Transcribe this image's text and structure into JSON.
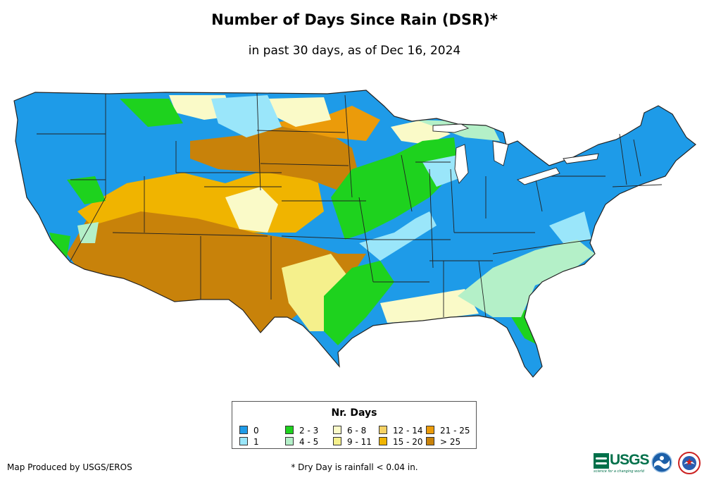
{
  "title": "Number of Days Since Rain (DSR)*",
  "subtitle": "in past 30 days, as of Dec 16, 2024",
  "legend": {
    "title": "Nr. Days",
    "items": [
      {
        "label": "0",
        "color": "#1e9be8"
      },
      {
        "label": "1",
        "color": "#9ae6fa"
      },
      {
        "label": "2 - 3",
        "color": "#1ed21e"
      },
      {
        "label": "4 - 5",
        "color": "#b4f0c8"
      },
      {
        "label": "6 - 8",
        "color": "#fafac8"
      },
      {
        "label": "9 - 11",
        "color": "#f5f08c"
      },
      {
        "label": "12 - 14",
        "color": "#f5d264"
      },
      {
        "label": "15 - 20",
        "color": "#f0b400"
      },
      {
        "label": "21 - 25",
        "color": "#eb9b0a"
      },
      {
        "label": "> 25",
        "color": "#c8820a"
      }
    ]
  },
  "credit": "Map Produced by USGS/EROS",
  "footnote": "* Dry Day is rainfall < 0.04 in.",
  "logos": {
    "usgs_text": "USGS",
    "usgs_tagline": "science for a changing world"
  },
  "colors": {
    "outline": "#222222",
    "usgs_green": "#00704a",
    "noaa_blue": "#1c5fa8"
  }
}
